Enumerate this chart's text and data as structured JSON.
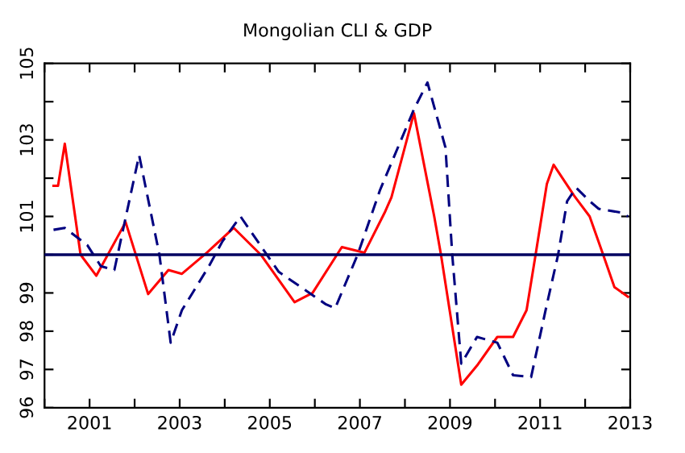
{
  "chart_data": {
    "type": "line",
    "title": "Mongolian CLI & GDP",
    "xlim": [
      2000,
      2013
    ],
    "ylim": [
      96,
      105
    ],
    "xticks": [
      {
        "value": 2000,
        "label": null
      },
      2001,
      {
        "value": 2002,
        "label": null
      },
      2003,
      {
        "value": 2004,
        "label": null
      },
      2005,
      {
        "value": 2006,
        "label": null
      },
      2007,
      {
        "value": 2008,
        "label": null
      },
      2009,
      {
        "value": 2010,
        "label": null
      },
      2011,
      {
        "value": 2012,
        "label": null
      },
      2013
    ],
    "yticks": [
      96,
      97,
      98,
      99,
      {
        "value": 100,
        "label": null
      },
      101,
      {
        "value": 102,
        "label": null
      },
      103,
      {
        "value": 104,
        "label": null
      },
      105
    ],
    "grid": false,
    "legend": false,
    "marker": "none",
    "ref_lines": [
      {
        "axis": "y",
        "value": 100,
        "color": "#000060",
        "line_style": "solid"
      }
    ],
    "series": [
      {
        "color": "#ff0000",
        "line_style": "solid",
        "x": [
          2000.2,
          2000.3,
          2000.45,
          2000.8,
          2001.15,
          2001.8,
          2002.3,
          2002.75,
          2003.05,
          2003.6,
          2004.2,
          2004.8,
          2005.55,
          2005.95,
          2006.6,
          2007.1,
          2007.55,
          2007.7,
          2008.2,
          2008.65,
          2008.8,
          2009.25,
          2009.6,
          2010.05,
          2010.4,
          2010.7,
          2010.9,
          2011.15,
          2011.3,
          2011.75,
          2012.1,
          2012.4,
          2012.65,
          2012.95
        ],
        "values": [
          101.8,
          101.8,
          102.9,
          100.0,
          99.45,
          100.85,
          98.97,
          99.6,
          99.5,
          100.05,
          100.7,
          100.0,
          98.76,
          99.0,
          100.2,
          100.05,
          101.1,
          101.5,
          103.7,
          101.0,
          100.0,
          96.6,
          97.1,
          97.85,
          97.85,
          98.55,
          100.0,
          101.85,
          102.35,
          101.55,
          101.0,
          100.0,
          99.15,
          98.9
        ]
      },
      {
        "color": "#000080",
        "line_style": "dashed",
        "x": [
          2000.2,
          2000.45,
          2000.95,
          2001.25,
          2001.55,
          2002.1,
          2002.55,
          2002.8,
          2003.05,
          2003.65,
          2003.95,
          2004.35,
          2004.7,
          2005.2,
          2006.25,
          2006.45,
          2006.95,
          2007.45,
          2008.2,
          2008.5,
          2008.9,
          2009.05,
          2009.25,
          2009.6,
          2010.05,
          2010.4,
          2010.8,
          2011.15,
          2011.4,
          2011.6,
          2011.8,
          2012.1,
          2012.3,
          2012.8,
          2012.95
        ],
        "values": [
          100.65,
          100.7,
          100.25,
          99.7,
          99.6,
          102.6,
          100.0,
          97.7,
          98.55,
          99.7,
          100.35,
          101.0,
          100.4,
          99.55,
          98.7,
          98.6,
          100.0,
          101.7,
          103.8,
          104.5,
          102.8,
          100.0,
          97.15,
          97.85,
          97.7,
          96.85,
          96.8,
          98.7,
          100.0,
          101.4,
          101.75,
          101.4,
          101.2,
          101.1,
          101.0
        ]
      }
    ]
  }
}
